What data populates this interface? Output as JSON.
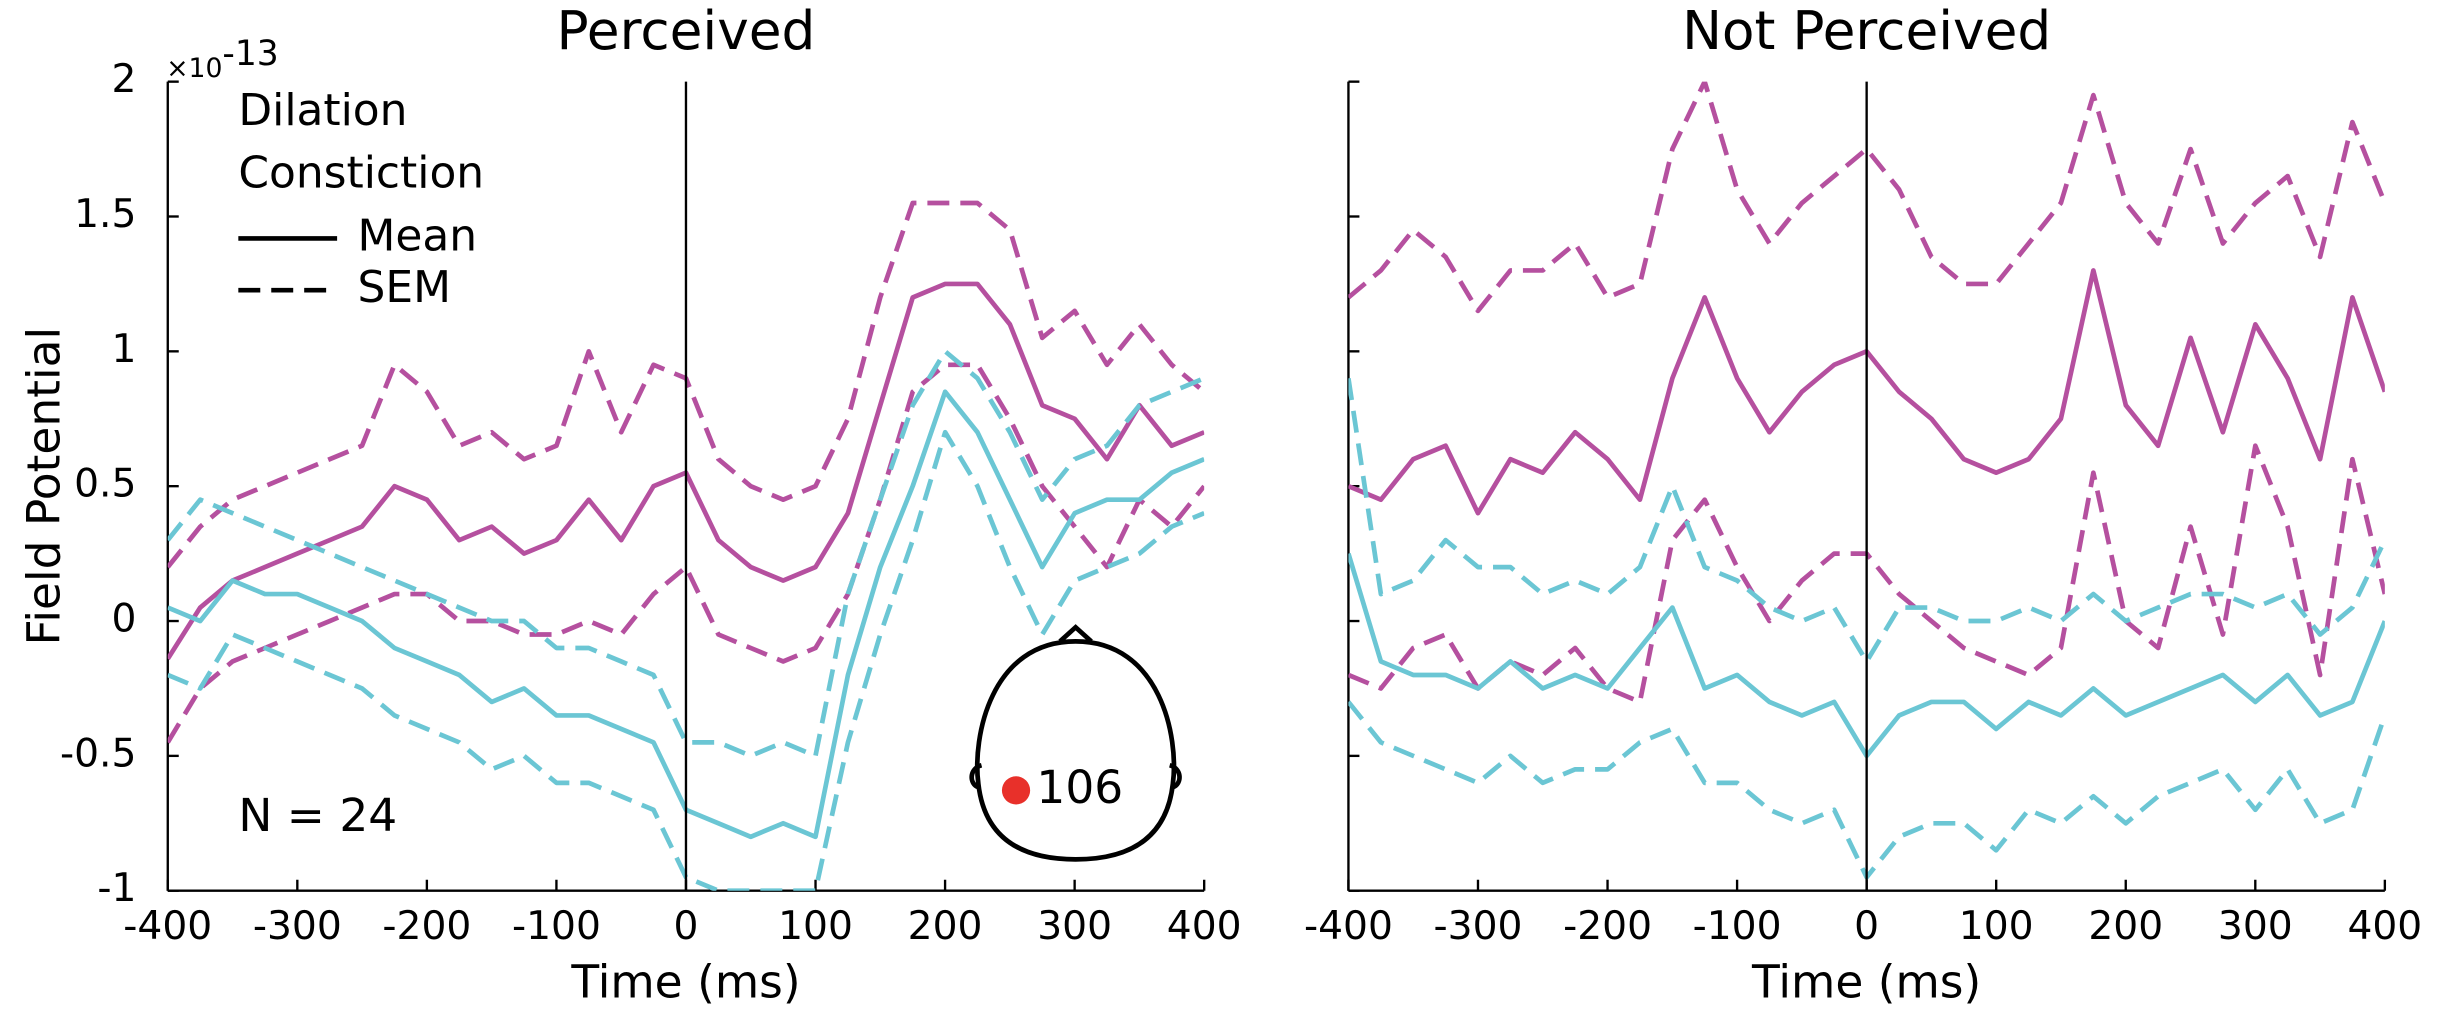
{
  "chart_data": [
    {
      "type": "line",
      "title": "Perceived",
      "xlabel": "Time (ms)",
      "ylabel": "Field Potential",
      "y_multiplier": {
        "base": "×10",
        "exponent": "-13"
      },
      "x": [
        -400,
        -375,
        -350,
        -325,
        -300,
        -275,
        -250,
        -225,
        -200,
        -175,
        -150,
        -125,
        -100,
        -75,
        -50,
        -25,
        0,
        25,
        50,
        75,
        100,
        125,
        150,
        175,
        200,
        225,
        250,
        275,
        300,
        325,
        350,
        375,
        400
      ],
      "xlim": [
        -400,
        400
      ],
      "xticks": [
        -400,
        -300,
        -200,
        -100,
        0,
        100,
        200,
        300,
        400
      ],
      "ylim": [
        -1,
        2
      ],
      "yticks": [
        -1,
        -0.5,
        0,
        0.5,
        1,
        1.5,
        2
      ],
      "ytick_labels": true,
      "zero_line": true,
      "legend": {
        "entries": [
          {
            "label": "Dilation",
            "color": "#b5509f"
          },
          {
            "label": "Constiction",
            "color": "#6bc6d4"
          }
        ],
        "line_styles": [
          {
            "label": "Mean",
            "dash": "solid"
          },
          {
            "label": "SEM",
            "dash": "dashed"
          }
        ]
      },
      "annotations": [
        "N = 24",
        "106"
      ],
      "series": [
        {
          "color": "#b5509f",
          "dash": "solid",
          "values": [
            -0.14,
            0.05,
            0.15,
            0.2,
            0.25,
            0.3,
            0.35,
            0.5,
            0.45,
            0.3,
            0.35,
            0.25,
            0.3,
            0.45,
            0.3,
            0.5,
            0.55,
            0.3,
            0.2,
            0.15,
            0.2,
            0.4,
            0.8,
            1.2,
            1.25,
            1.25,
            1.1,
            0.8,
            0.75,
            0.6,
            0.8,
            0.65,
            0.7
          ]
        },
        {
          "color": "#b5509f",
          "dash": "dashed",
          "values": [
            0.2,
            0.35,
            0.45,
            0.5,
            0.55,
            0.6,
            0.65,
            0.95,
            0.85,
            0.65,
            0.7,
            0.6,
            0.65,
            1.0,
            0.7,
            0.95,
            0.9,
            0.6,
            0.5,
            0.45,
            0.5,
            0.75,
            1.2,
            1.55,
            1.55,
            1.55,
            1.45,
            1.05,
            1.15,
            0.95,
            1.1,
            0.95,
            0.85
          ]
        },
        {
          "color": "#b5509f",
          "dash": "dashed",
          "values": [
            -0.45,
            -0.25,
            -0.15,
            -0.1,
            -0.05,
            0.0,
            0.05,
            0.1,
            0.1,
            0.0,
            0.0,
            -0.05,
            -0.05,
            0.0,
            -0.05,
            0.1,
            0.2,
            -0.05,
            -0.1,
            -0.15,
            -0.1,
            0.1,
            0.45,
            0.85,
            0.95,
            0.95,
            0.75,
            0.5,
            0.35,
            0.2,
            0.45,
            0.35,
            0.5
          ]
        },
        {
          "color": "#6bc6d4",
          "dash": "solid",
          "values": [
            0.05,
            0.0,
            0.15,
            0.1,
            0.1,
            0.05,
            0.0,
            -0.1,
            -0.15,
            -0.2,
            -0.3,
            -0.25,
            -0.35,
            -0.35,
            -0.4,
            -0.45,
            -0.7,
            -0.75,
            -0.8,
            -0.75,
            -0.8,
            -0.2,
            0.2,
            0.5,
            0.85,
            0.7,
            0.45,
            0.2,
            0.4,
            0.45,
            0.45,
            0.55,
            0.6
          ]
        },
        {
          "color": "#6bc6d4",
          "dash": "dashed",
          "values": [
            0.3,
            0.45,
            0.4,
            0.35,
            0.3,
            0.25,
            0.2,
            0.15,
            0.1,
            0.05,
            0.0,
            0.0,
            -0.1,
            -0.1,
            -0.15,
            -0.2,
            -0.45,
            -0.45,
            -0.5,
            -0.45,
            -0.5,
            0.1,
            0.45,
            0.8,
            1.0,
            0.9,
            0.7,
            0.45,
            0.6,
            0.65,
            0.8,
            0.85,
            0.9
          ]
        },
        {
          "color": "#6bc6d4",
          "dash": "dashed",
          "values": [
            -0.2,
            -0.25,
            -0.05,
            -0.1,
            -0.15,
            -0.2,
            -0.25,
            -0.35,
            -0.4,
            -0.45,
            -0.55,
            -0.5,
            -0.6,
            -0.6,
            -0.65,
            -0.7,
            -0.95,
            -1.0,
            -1.0,
            -1.0,
            -1.0,
            -0.45,
            -0.05,
            0.3,
            0.7,
            0.5,
            0.2,
            -0.05,
            0.15,
            0.2,
            0.25,
            0.35,
            0.4
          ]
        }
      ]
    },
    {
      "type": "line",
      "title": "Not Perceived",
      "xlabel": "Time (ms)",
      "x": [
        -400,
        -375,
        -350,
        -325,
        -300,
        -275,
        -250,
        -225,
        -200,
        -175,
        -150,
        -125,
        -100,
        -75,
        -50,
        -25,
        0,
        25,
        50,
        75,
        100,
        125,
        150,
        175,
        200,
        225,
        250,
        275,
        300,
        325,
        350,
        375,
        400
      ],
      "xlim": [
        -400,
        400
      ],
      "xticks": [
        -400,
        -300,
        -200,
        -100,
        0,
        100,
        200,
        300,
        400
      ],
      "ylim": [
        -1,
        2
      ],
      "yticks": [
        -1,
        -0.5,
        0,
        0.5,
        1,
        1.5,
        2
      ],
      "ytick_labels": false,
      "zero_line": true,
      "series": [
        {
          "color": "#b5509f",
          "dash": "solid",
          "values": [
            0.5,
            0.45,
            0.6,
            0.65,
            0.4,
            0.6,
            0.55,
            0.7,
            0.6,
            0.45,
            0.9,
            1.2,
            0.9,
            0.7,
            0.85,
            0.95,
            1.0,
            0.85,
            0.75,
            0.6,
            0.55,
            0.6,
            0.75,
            1.3,
            0.8,
            0.65,
            1.05,
            0.7,
            1.1,
            0.9,
            0.6,
            1.2,
            0.85
          ]
        },
        {
          "color": "#b5509f",
          "dash": "dashed",
          "values": [
            1.2,
            1.3,
            1.45,
            1.35,
            1.15,
            1.3,
            1.3,
            1.4,
            1.2,
            1.25,
            1.75,
            2.0,
            1.6,
            1.4,
            1.55,
            1.65,
            1.75,
            1.6,
            1.35,
            1.25,
            1.25,
            1.4,
            1.55,
            1.95,
            1.55,
            1.4,
            1.75,
            1.4,
            1.55,
            1.65,
            1.35,
            1.85,
            1.55
          ]
        },
        {
          "color": "#b5509f",
          "dash": "dashed",
          "values": [
            -0.2,
            -0.25,
            -0.1,
            -0.05,
            -0.25,
            -0.15,
            -0.2,
            -0.1,
            -0.25,
            -0.3,
            0.3,
            0.45,
            0.2,
            0.0,
            0.15,
            0.25,
            0.25,
            0.1,
            0.0,
            -0.1,
            -0.15,
            -0.2,
            -0.1,
            0.55,
            0.0,
            -0.1,
            0.35,
            -0.05,
            0.65,
            0.35,
            -0.2,
            0.6,
            0.1
          ]
        },
        {
          "color": "#6bc6d4",
          "dash": "solid",
          "values": [
            0.25,
            -0.15,
            -0.2,
            -0.2,
            -0.25,
            -0.15,
            -0.25,
            -0.2,
            -0.25,
            -0.1,
            0.05,
            -0.25,
            -0.2,
            -0.3,
            -0.35,
            -0.3,
            -0.5,
            -0.35,
            -0.3,
            -0.3,
            -0.4,
            -0.3,
            -0.35,
            -0.25,
            -0.35,
            -0.3,
            -0.25,
            -0.2,
            -0.3,
            -0.2,
            -0.35,
            -0.3,
            0.0
          ]
        },
        {
          "color": "#6bc6d4",
          "dash": "dashed",
          "values": [
            0.9,
            0.1,
            0.15,
            0.3,
            0.2,
            0.2,
            0.1,
            0.15,
            0.1,
            0.2,
            0.5,
            0.2,
            0.15,
            0.05,
            0.0,
            0.05,
            -0.15,
            0.05,
            0.05,
            0.0,
            0.0,
            0.05,
            0.0,
            0.1,
            0.0,
            0.05,
            0.1,
            0.1,
            0.05,
            0.1,
            -0.05,
            0.05,
            0.3
          ]
        },
        {
          "color": "#6bc6d4",
          "dash": "dashed",
          "values": [
            -0.3,
            -0.45,
            -0.5,
            -0.55,
            -0.6,
            -0.5,
            -0.6,
            -0.55,
            -0.55,
            -0.45,
            -0.4,
            -0.6,
            -0.6,
            -0.7,
            -0.75,
            -0.7,
            -0.95,
            -0.8,
            -0.75,
            -0.75,
            -0.85,
            -0.7,
            -0.75,
            -0.65,
            -0.75,
            -0.65,
            -0.6,
            -0.55,
            -0.7,
            -0.55,
            -0.75,
            -0.7,
            -0.35
          ]
        }
      ]
    }
  ]
}
